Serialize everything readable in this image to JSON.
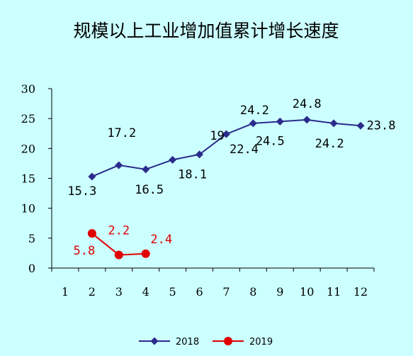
{
  "chart_data": {
    "type": "line",
    "title": "规模以上工业增加值累计增长速度",
    "x": [
      "1",
      "2",
      "3",
      "4",
      "5",
      "6",
      "7",
      "8",
      "9",
      "10",
      "11",
      "12"
    ],
    "ylim": [
      0,
      30
    ],
    "yticks": [
      "0",
      "5",
      "10",
      "15",
      "20",
      "25",
      "30"
    ],
    "grid": false,
    "legend_position": "bottom",
    "series": [
      {
        "name": "2018",
        "color": "#2b2b8c",
        "marker": "diamond",
        "points": [
          {
            "x": "2",
            "y": 15.3,
            "label": "15.3"
          },
          {
            "x": "3",
            "y": 17.2,
            "label": "17.2"
          },
          {
            "x": "4",
            "y": 16.5,
            "label": "16.5"
          },
          {
            "x": "5",
            "y": 18.1,
            "label": "18.1"
          },
          {
            "x": "6",
            "y": 19,
            "label": "19"
          },
          {
            "x": "7",
            "y": 22.4,
            "label": "22.4"
          },
          {
            "x": "8",
            "y": 24.2,
            "label": "24.2"
          },
          {
            "x": "9",
            "y": 24.5,
            "label": "24.5"
          },
          {
            "x": "10",
            "y": 24.8,
            "label": "24.8"
          },
          {
            "x": "11",
            "y": 24.2,
            "label": "24.2"
          },
          {
            "x": "12",
            "y": 23.8,
            "label": "23.8"
          }
        ]
      },
      {
        "name": "2019",
        "color": "#e00000",
        "marker": "circle",
        "points": [
          {
            "x": "2",
            "y": 5.8,
            "label": "5.8"
          },
          {
            "x": "3",
            "y": 2.2,
            "label": "2.2"
          },
          {
            "x": "4",
            "y": 2.4,
            "label": "2.4"
          }
        ]
      }
    ]
  }
}
